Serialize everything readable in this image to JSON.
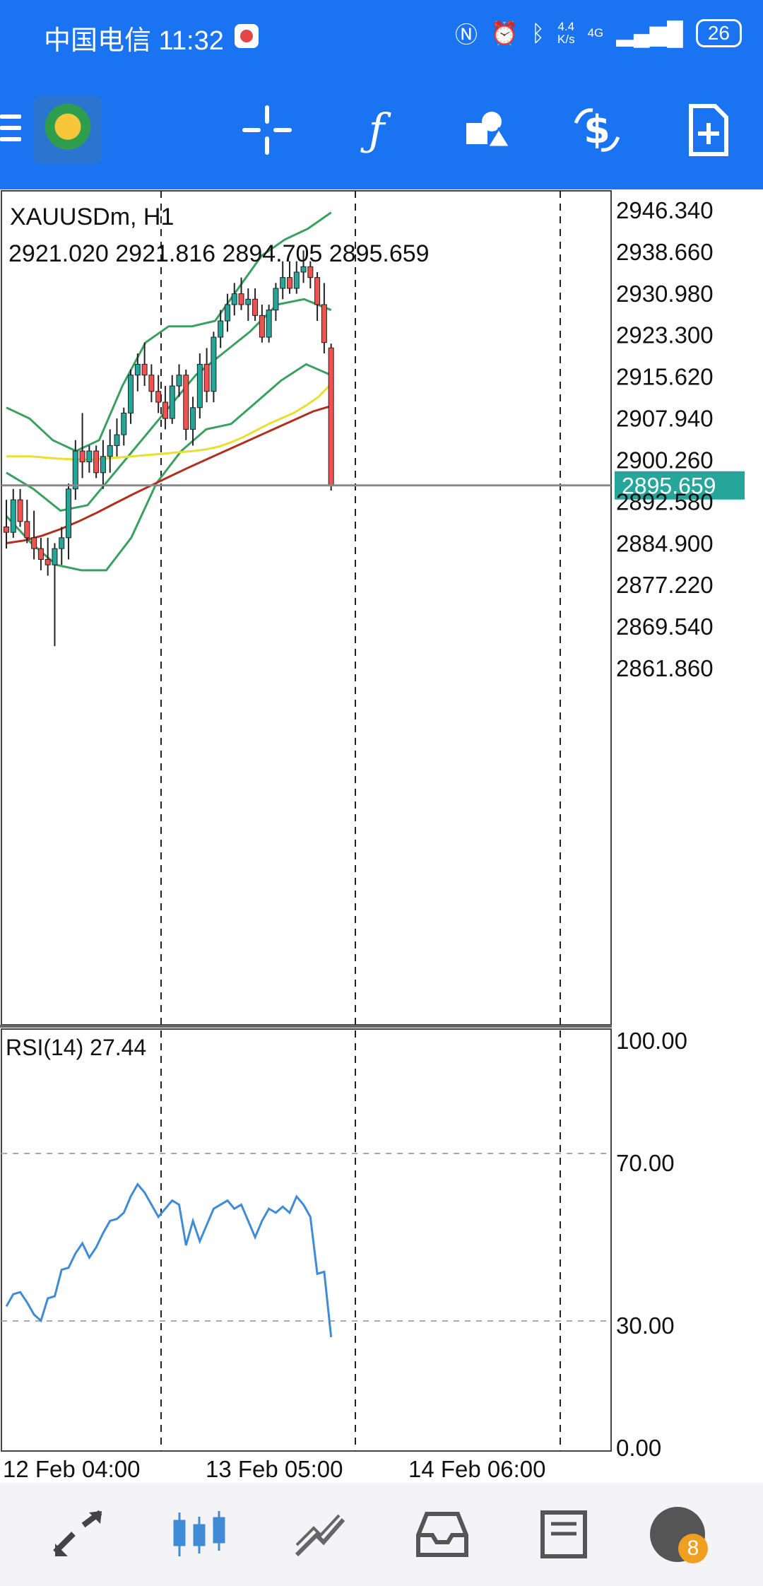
{
  "status_bar": {
    "carrier_time": "中国电信 11:32",
    "speed_top": "4.4",
    "speed_bottom": "K/s",
    "network": "4G",
    "battery": "26"
  },
  "toolbar": {
    "icons": [
      "menu-icon",
      "app-logo",
      "crosshair-icon",
      "function-icon",
      "objects-icon",
      "trade-icon",
      "new-document-icon"
    ]
  },
  "chart": {
    "symbol": "XAUUSDm, H1",
    "ohlc": "2921.020 2921.816 2894.705 2895.659",
    "current_price": "2895.659",
    "price_axis": [
      "2946.340",
      "2938.660",
      "2930.980",
      "2923.300",
      "2915.620",
      "2907.940",
      "2900.260",
      "2892.580",
      "2884.900",
      "2877.220",
      "2869.540",
      "2861.860"
    ],
    "rsi_label": "RSI(14) 27.44",
    "rsi_axis": [
      "100.00",
      "70.00",
      "30.00",
      "0.00"
    ],
    "time_axis": [
      "12 Feb 04:00",
      "13 Feb 05:00",
      "14 Feb 06:00"
    ],
    "colors": {
      "bull": "#26a69a",
      "bear": "#ef5350",
      "ma_fast": "#e8e030",
      "ma_slow": "#b03020",
      "bands": "#3aa060",
      "rsi": "#3f8bd6",
      "price_tag": "#26a69a"
    }
  },
  "chart_data": [
    {
      "type": "candlestick",
      "title": "XAUUSDm, H1",
      "ylim": [
        2857.0,
        2950.0
      ],
      "candles": [
        [
          2888,
          2893,
          2884,
          2887
        ],
        [
          2887,
          2895,
          2886,
          2893
        ],
        [
          2893,
          2895,
          2888,
          2889
        ],
        [
          2889,
          2893,
          2885,
          2886
        ],
        [
          2886,
          2891,
          2882,
          2884
        ],
        [
          2884,
          2886,
          2880,
          2882
        ],
        [
          2882,
          2886,
          2879,
          2881
        ],
        [
          2881,
          2885,
          2866,
          2884
        ],
        [
          2884,
          2888,
          2881,
          2886
        ],
        [
          2886,
          2896,
          2882,
          2895
        ],
        [
          2895,
          2904,
          2893,
          2902
        ],
        [
          2902,
          2909,
          2897,
          2900
        ],
        [
          2900,
          2903,
          2898,
          2902
        ],
        [
          2902,
          2903,
          2897,
          2898
        ],
        [
          2898,
          2904,
          2895,
          2901
        ],
        [
          2901,
          2906,
          2898,
          2903
        ],
        [
          2903,
          2908,
          2901,
          2905
        ],
        [
          2905,
          2910,
          2903,
          2909
        ],
        [
          2909,
          2917,
          2907,
          2916
        ],
        [
          2916,
          2920,
          2913,
          2918
        ],
        [
          2918,
          2922,
          2914,
          2916
        ],
        [
          2916,
          2918,
          2911,
          2913
        ],
        [
          2913,
          2916,
          2909,
          2911
        ],
        [
          2911,
          2914,
          2906,
          2908
        ],
        [
          2908,
          2916,
          2907,
          2914
        ],
        [
          2914,
          2918,
          2912,
          2916
        ],
        [
          2916,
          2917,
          2904,
          2906
        ],
        [
          2906,
          2912,
          2903,
          2910
        ],
        [
          2910,
          2920,
          2908,
          2918
        ],
        [
          2918,
          2921,
          2911,
          2913
        ],
        [
          2913,
          2924,
          2911,
          2923
        ],
        [
          2923,
          2928,
          2921,
          2926
        ],
        [
          2926,
          2931,
          2924,
          2929
        ],
        [
          2929,
          2933,
          2927,
          2931
        ],
        [
          2931,
          2934,
          2928,
          2929
        ],
        [
          2929,
          2932,
          2926,
          2930
        ],
        [
          2930,
          2932,
          2926,
          2927
        ],
        [
          2927,
          2929,
          2922,
          2923
        ],
        [
          2923,
          2929,
          2922,
          2928
        ],
        [
          2928,
          2933,
          2926,
          2932
        ],
        [
          2932,
          2937,
          2930,
          2934
        ],
        [
          2934,
          2937,
          2931,
          2932
        ],
        [
          2932,
          2937,
          2931,
          2935
        ],
        [
          2935,
          2939,
          2933,
          2936
        ],
        [
          2936,
          2937,
          2932,
          2934
        ],
        [
          2934,
          2935,
          2926,
          2929
        ],
        [
          2929,
          2933,
          2920,
          2922
        ],
        [
          2921.02,
          2921.816,
          2894.705,
          2895.659
        ]
      ],
      "ma_fast": [
        2901,
        2901,
        2901,
        2900.8,
        2900.6,
        2900.5,
        2900.4,
        2900.4,
        2900.6,
        2900.8,
        2901,
        2901.2,
        2901.4,
        2901.6,
        2901.8,
        2902,
        2902.3,
        2902.8,
        2903.6,
        2904.6,
        2905.8,
        2907,
        2908,
        2909,
        2910.4,
        2912,
        2914.4
      ],
      "ma_slow": [
        2885,
        2885.5,
        2886.4,
        2887.6,
        2889,
        2890.6,
        2892.3,
        2894,
        2895.6,
        2897.2,
        2898.8,
        2900.3,
        2901.8,
        2903.3,
        2904.8,
        2906.3,
        2907.8,
        2909.3,
        2910.3
      ],
      "band_upper": [
        2910,
        2908,
        2904,
        2902,
        2904,
        2914,
        2922,
        2925,
        2925,
        2926,
        2932,
        2938,
        2941,
        2943,
        2946
      ],
      "band_mid": [
        2898,
        2895,
        2891,
        2892,
        2898,
        2904,
        2910,
        2916,
        2920,
        2924,
        2929,
        2930,
        2928
      ],
      "band_lower": [
        2890,
        2885,
        2881,
        2880,
        2880,
        2886,
        2896,
        2902,
        2906,
        2907,
        2911,
        2915,
        2918,
        2916
      ],
      "current_price": 2895.659
    },
    {
      "type": "line",
      "title": "RSI(14) 27.44",
      "ylim": [
        0,
        100
      ],
      "levels": [
        30,
        70
      ],
      "values": [
        35,
        38,
        38.5,
        36,
        33,
        31.5,
        37,
        37.5,
        44,
        44.5,
        48,
        50.5,
        47,
        49.5,
        53,
        56,
        56.5,
        58,
        62,
        65,
        63,
        60,
        57,
        59,
        61,
        60,
        50,
        56,
        51,
        55,
        59,
        60,
        61,
        59,
        60,
        56,
        52,
        56,
        59,
        58,
        59.5,
        58,
        62,
        60,
        57,
        43,
        43.5,
        27.44
      ]
    }
  ]
}
